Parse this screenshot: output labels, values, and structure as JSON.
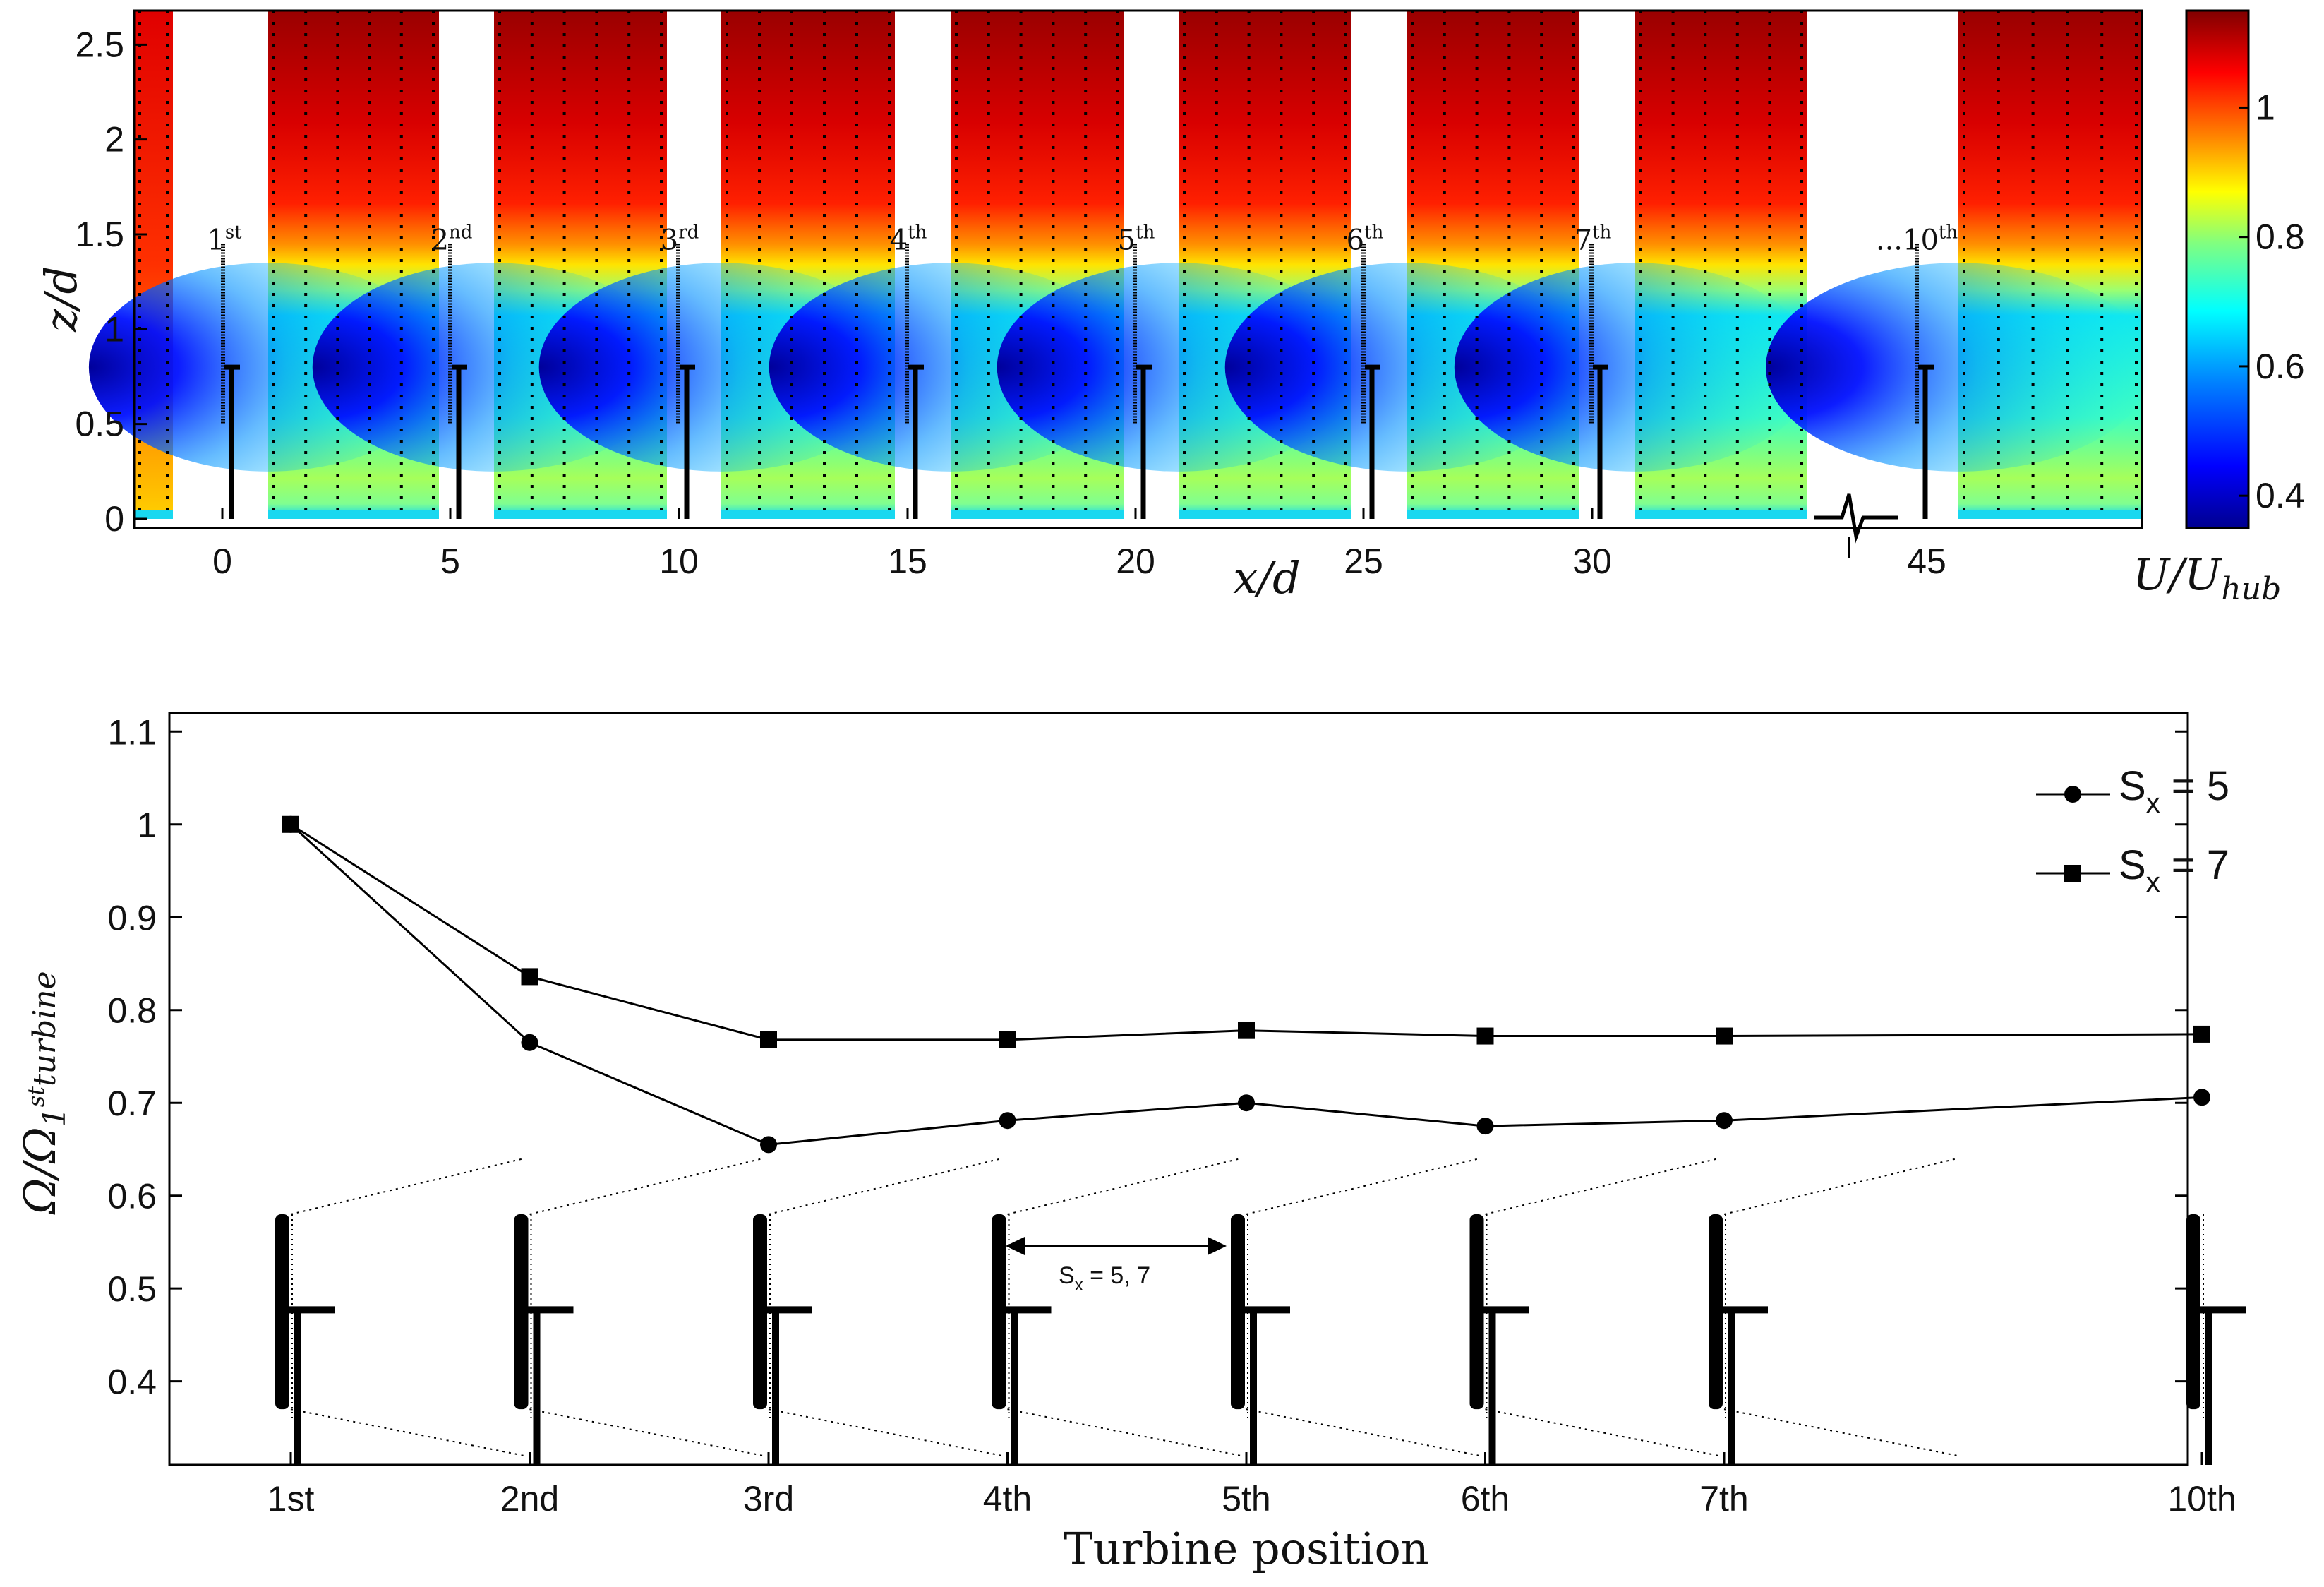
{
  "colors": {
    "series_line": "#000000",
    "colormap": [
      "#00008f",
      "#0000ff",
      "#0080ff",
      "#00ffff",
      "#80ff80",
      "#ffff00",
      "#ff8000",
      "#ff0000",
      "#800000"
    ]
  },
  "chart_data": [
    {
      "type": "heatmap",
      "title": "",
      "xlabel": "x/d",
      "ylabel": "z/d",
      "x_ticks": [
        "0",
        "5",
        "10",
        "15",
        "20",
        "25",
        "30",
        "45"
      ],
      "y_ticks": [
        "0",
        "0.5",
        "1",
        "1.5",
        "2",
        "2.5"
      ],
      "ylim": [
        0,
        2.68
      ],
      "colorbar": {
        "label": "U/U_hub",
        "label_main": "U/U",
        "label_sub": "hub",
        "ticks": [
          "0.4",
          "0.6",
          "0.8",
          "1"
        ],
        "range": [
          0.35,
          1.15
        ]
      },
      "turbines": [
        {
          "base": "1",
          "suffix": "st"
        },
        {
          "base": "2",
          "suffix": "nd"
        },
        {
          "base": "3",
          "suffix": "rd"
        },
        {
          "base": "4",
          "suffix": "th"
        },
        {
          "base": "5",
          "suffix": "th"
        },
        {
          "base": "6",
          "suffix": "th"
        },
        {
          "base": "7",
          "suffix": "th"
        },
        {
          "base": "...10",
          "suffix": "th"
        }
      ],
      "field_description_values": {
        "wake_min_hub_height": 0.4,
        "freestream_top": 1.15,
        "inflow_near_ground": 0.85
      }
    },
    {
      "type": "line",
      "title": "",
      "xlabel": "Turbine position",
      "ylabel": "Ω/Ω_1st turbine",
      "ylabel_main": "Ω/Ω",
      "ylabel_sub": "1",
      "ylabel_sup": "st",
      "ylabel_tail": "turbine",
      "categories": [
        "1st",
        "2nd",
        "3rd",
        "4th",
        "5th",
        "6th",
        "7th",
        "10th"
      ],
      "x_index": [
        1,
        2,
        3,
        4,
        5,
        6,
        7,
        9
      ],
      "ylim": [
        0.31,
        1.12
      ],
      "y_ticks": [
        "0.4",
        "0.5",
        "0.6",
        "0.7",
        "0.8",
        "0.9",
        "1",
        "1.1"
      ],
      "series": [
        {
          "name": "S_x = 5",
          "label_main": "S",
          "label_sub": "x",
          "label_tail": " = 5",
          "marker": "circle",
          "values": [
            1.0,
            0.765,
            0.655,
            0.681,
            0.7,
            0.675,
            0.681,
            0.706
          ]
        },
        {
          "name": "S_x = 7",
          "label_main": "S",
          "label_sub": "x",
          "label_tail": " = 7",
          "marker": "square",
          "values": [
            1.0,
            0.836,
            0.768,
            0.768,
            0.778,
            0.772,
            0.772,
            0.774
          ]
        }
      ],
      "legend_position": "top-right",
      "annotation": {
        "main": "S",
        "sub": "x",
        "tail": " = 5, 7"
      }
    }
  ]
}
